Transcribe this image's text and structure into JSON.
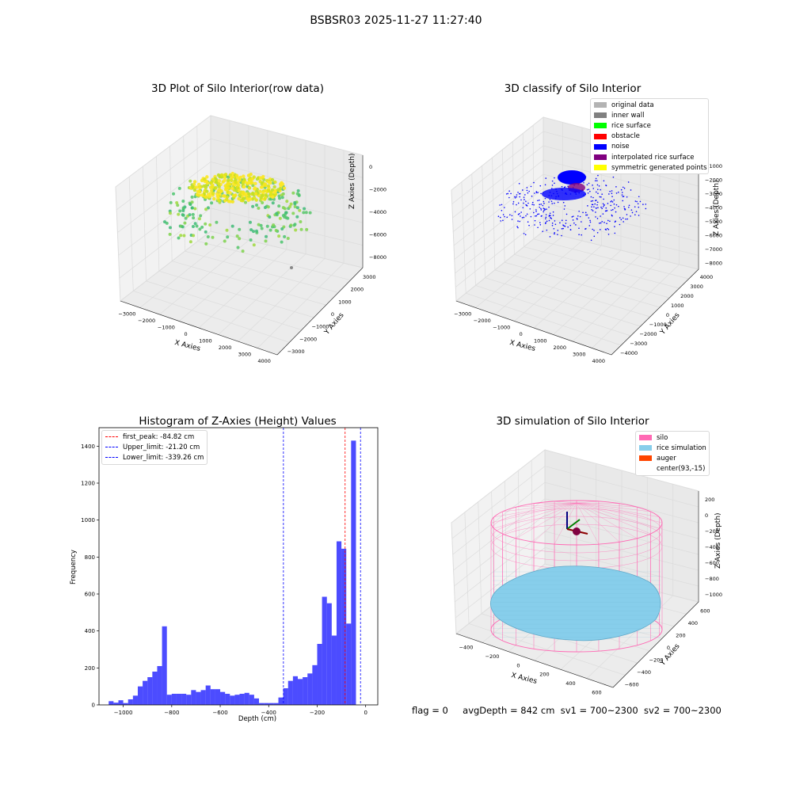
{
  "figure": {
    "suptitle": "BSBSR03 2025-11-27 11:27:40",
    "footer": {
      "flag": "flag = 0",
      "avg_depth": "avgDepth = 842 cm",
      "sv1": "sv1 = 700~2300",
      "sv2": "sv2 = 700~2300"
    }
  },
  "chart_data": [
    {
      "type": "scatter",
      "title": "3D Plot of Silo Interior(row data)",
      "xlabel": "X Axies",
      "ylabel": "Y Axies",
      "zlabel": "Z Axies (Depth)",
      "x_ticks": [
        "−3000",
        "−2000",
        "−1000",
        "0",
        "1000",
        "2000",
        "3000",
        "4000"
      ],
      "y_ticks": [
        "−3000",
        "−2000",
        "−1000",
        "0",
        "1000",
        "2000",
        "3000"
      ],
      "z_ticks": [
        "−8000",
        "−6000",
        "−4000",
        "−2000",
        "0"
      ],
      "colormap": "viridis (by depth: green to yellow)",
      "grid": true
    },
    {
      "type": "scatter",
      "title": "3D classify of Silo Interior",
      "xlabel": "X Axies",
      "ylabel": "Y Axies",
      "zlabel": "Z Axies (Depth)",
      "x_ticks": [
        "−3000",
        "−2000",
        "−1000",
        "0",
        "1000",
        "2000",
        "3000",
        "4000"
      ],
      "y_ticks": [
        "−4000",
        "−3000",
        "−2000",
        "−1000",
        "0",
        "1000",
        "2000",
        "3000",
        "4000"
      ],
      "z_ticks": [
        "−8000",
        "−7000",
        "−6000",
        "−5000",
        "−4000",
        "−3000",
        "−2000",
        "−1000"
      ],
      "legend_position": "top-right",
      "legend": [
        {
          "label": "original data",
          "color": "#b3b3b3"
        },
        {
          "label": "inner wall",
          "color": "#808080"
        },
        {
          "label": "rice surface",
          "color": "#00ff00"
        },
        {
          "label": "obstacle",
          "color": "#ff0000"
        },
        {
          "label": "noise",
          "color": "#0000ff"
        },
        {
          "label": "interpolated rice surface",
          "color": "#800080"
        },
        {
          "label": "symmetric generated points",
          "color": "#ffff00"
        }
      ],
      "grid": true
    },
    {
      "type": "bar",
      "title": "Histogram of Z-Axies (Height) Values",
      "xlabel": "Depth (cm)",
      "ylabel": "Frequency",
      "bar_color": "#0000ff",
      "xlim": [
        -1100,
        50
      ],
      "ylim": [
        0,
        1500
      ],
      "x_ticks": [
        -1000,
        -800,
        -600,
        -400,
        -200,
        0
      ],
      "x_tick_labels": [
        "−1000",
        "−800",
        "−600",
        "−400",
        "−200",
        "0"
      ],
      "y_ticks": [
        0,
        200,
        400,
        600,
        800,
        1000,
        1200,
        1400
      ],
      "bin_width": 20,
      "bins_left_edges": [
        -1060,
        -1040,
        -1020,
        -1000,
        -980,
        -960,
        -940,
        -920,
        -900,
        -880,
        -860,
        -840,
        -820,
        -800,
        -780,
        -760,
        -740,
        -720,
        -700,
        -680,
        -660,
        -640,
        -620,
        -600,
        -580,
        -560,
        -540,
        -520,
        -500,
        -480,
        -460,
        -440,
        -420,
        -400,
        -380,
        -360,
        -340,
        -320,
        -300,
        -280,
        -260,
        -240,
        -220,
        -200,
        -180,
        -160,
        -140,
        -120,
        -100,
        -80,
        -60,
        -40,
        -20
      ],
      "values": [
        20,
        12,
        25,
        10,
        30,
        50,
        100,
        130,
        150,
        180,
        210,
        425,
        55,
        60,
        60,
        60,
        55,
        80,
        70,
        80,
        105,
        85,
        85,
        70,
        60,
        50,
        55,
        60,
        65,
        55,
        35,
        10,
        10,
        10,
        10,
        40,
        90,
        130,
        155,
        140,
        150,
        170,
        215,
        330,
        585,
        550,
        375,
        885,
        845,
        440,
        1430,
        0,
        0
      ],
      "reference_lines": [
        {
          "label": "first_peak: -84.82 cm",
          "x": -84.82,
          "color": "#ff0000"
        },
        {
          "label": "Upper_limit: -21.20 cm",
          "x": -21.2,
          "color": "#0000ff"
        },
        {
          "label": "Lower_limit: -339.26 cm",
          "x": -339.26,
          "color": "#0000ff"
        }
      ],
      "legend_position": "top-left",
      "grid": false
    },
    {
      "type": "scatter",
      "title": "3D simulation of Silo Interior",
      "xlabel": "X Axies",
      "ylabel": "Y Axies",
      "zlabel": "Z Axies (Depth)",
      "x_ticks": [
        "−400",
        "−200",
        "0",
        "200",
        "400",
        "600"
      ],
      "y_ticks": [
        "−600",
        "−400",
        "−200",
        "0",
        "200",
        "400",
        "600"
      ],
      "z_ticks": [
        "−1000",
        "−800",
        "−600",
        "−400",
        "−200",
        "0",
        "200"
      ],
      "legend_position": "top-right",
      "legend": [
        {
          "label": "silo",
          "color": "#ff69b4"
        },
        {
          "label": "rice simulation",
          "color": "#87ceeb"
        },
        {
          "label": "auger",
          "color": "#ff4500"
        },
        {
          "label": "center(93,-15)",
          "color": "none"
        }
      ],
      "grid": true
    }
  ]
}
